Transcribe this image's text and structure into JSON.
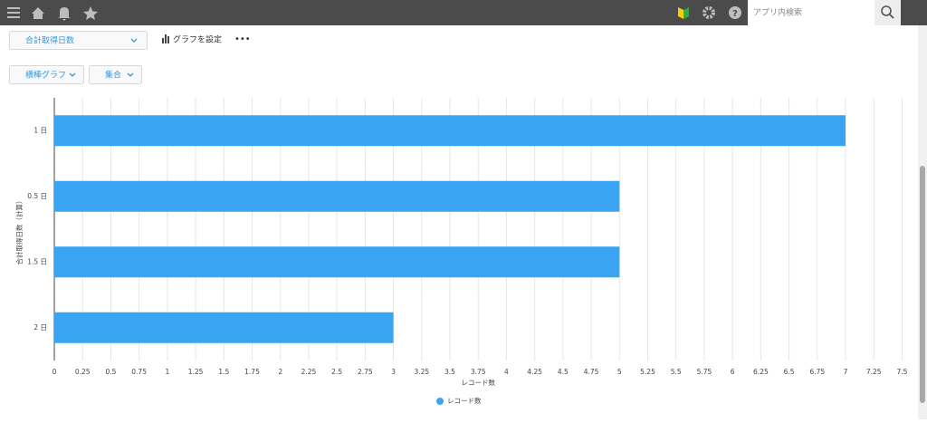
{
  "header": {
    "search_placeholder": "アプリ内検索"
  },
  "toolbar": {
    "field_select": "合計取得日数",
    "graph_settings": "グラフを設定",
    "more": "•••",
    "chart_type": "横棒グラフ",
    "mode": "集合"
  },
  "chart_data": {
    "type": "barh",
    "categories": [
      "1 日",
      "0.5 日",
      "1.5 日",
      "2 日"
    ],
    "series": [
      {
        "name": "レコード数",
        "color": "#38a4f2",
        "values": [
          7,
          5,
          5,
          3
        ]
      }
    ],
    "xlabel": "レコード数",
    "ylabel": "合計取得日数（計算）",
    "xlim": [
      0,
      7.5
    ],
    "xticks": [
      0,
      0.25,
      0.5,
      0.75,
      1,
      1.25,
      1.5,
      1.75,
      2,
      2.25,
      2.5,
      2.75,
      3,
      3.25,
      3.5,
      3.75,
      4,
      4.25,
      4.5,
      4.75,
      5,
      5.25,
      5.5,
      5.75,
      6,
      6.25,
      6.5,
      6.75,
      7,
      7.25,
      7.5
    ],
    "grid": true
  }
}
